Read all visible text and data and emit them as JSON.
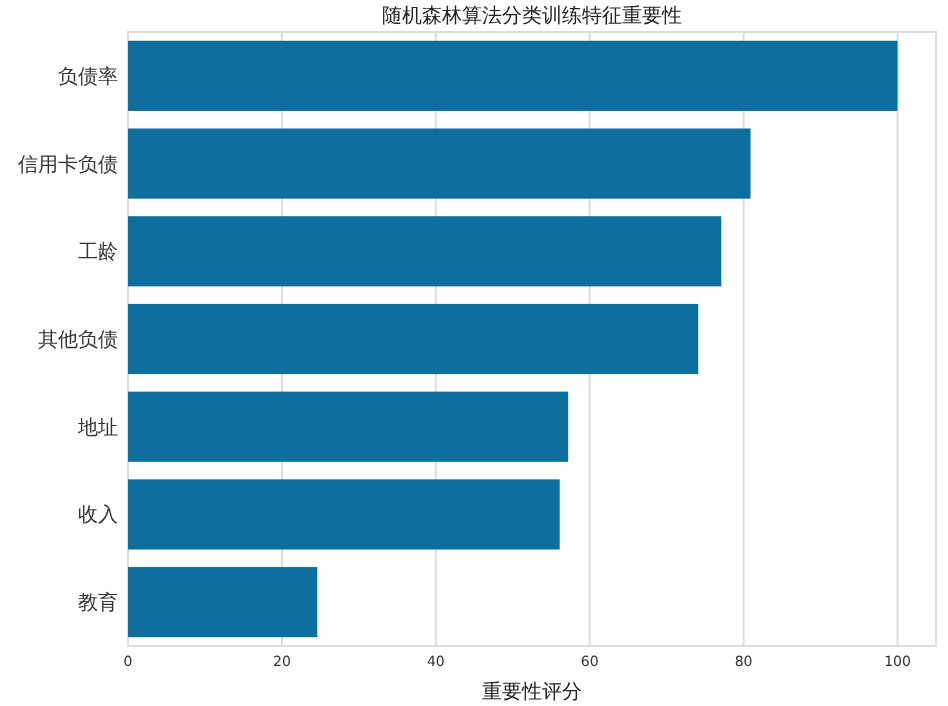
{
  "chart_data": {
    "type": "bar",
    "orientation": "horizontal",
    "title": "随机森林算法分类训练特征重要性",
    "xlabel": "重要性评分",
    "categories": [
      "负债率",
      "信用卡负债",
      "工龄",
      "其他负债",
      "地址",
      "收入",
      "教育"
    ],
    "values": [
      100,
      80.9,
      77.1,
      74.1,
      57.2,
      56.1,
      24.6
    ],
    "color": "#0e6e9e",
    "xlim": [
      0,
      105
    ],
    "xticks": [
      0,
      20,
      40,
      60,
      80,
      100
    ],
    "grid": "x"
  }
}
